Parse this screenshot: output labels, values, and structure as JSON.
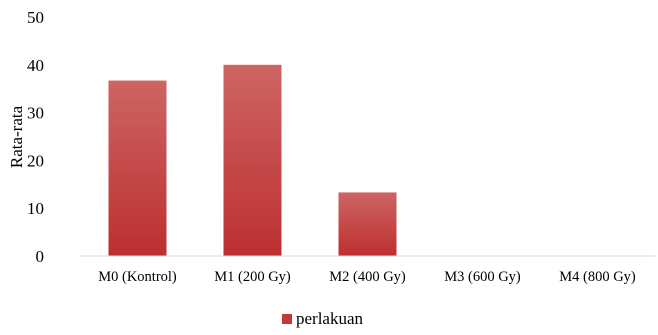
{
  "chart_data": {
    "type": "bar",
    "title": "",
    "xlabel": "",
    "ylabel": "Rata-rata",
    "ylim": [
      0,
      50
    ],
    "yticks": [
      0,
      10,
      20,
      30,
      40,
      50
    ],
    "grid": false,
    "legend_position": "bottom",
    "categories": [
      "M0 (Kontrol)",
      "M1 (200 Gy)",
      "M2 (400 Gy)",
      "M3 (600 Gy)",
      "M4 (800 Gy)"
    ],
    "series": [
      {
        "name": "perlakuan",
        "values": [
          36.7,
          40,
          13.3,
          0,
          0
        ],
        "color": "#C0393B"
      }
    ]
  }
}
